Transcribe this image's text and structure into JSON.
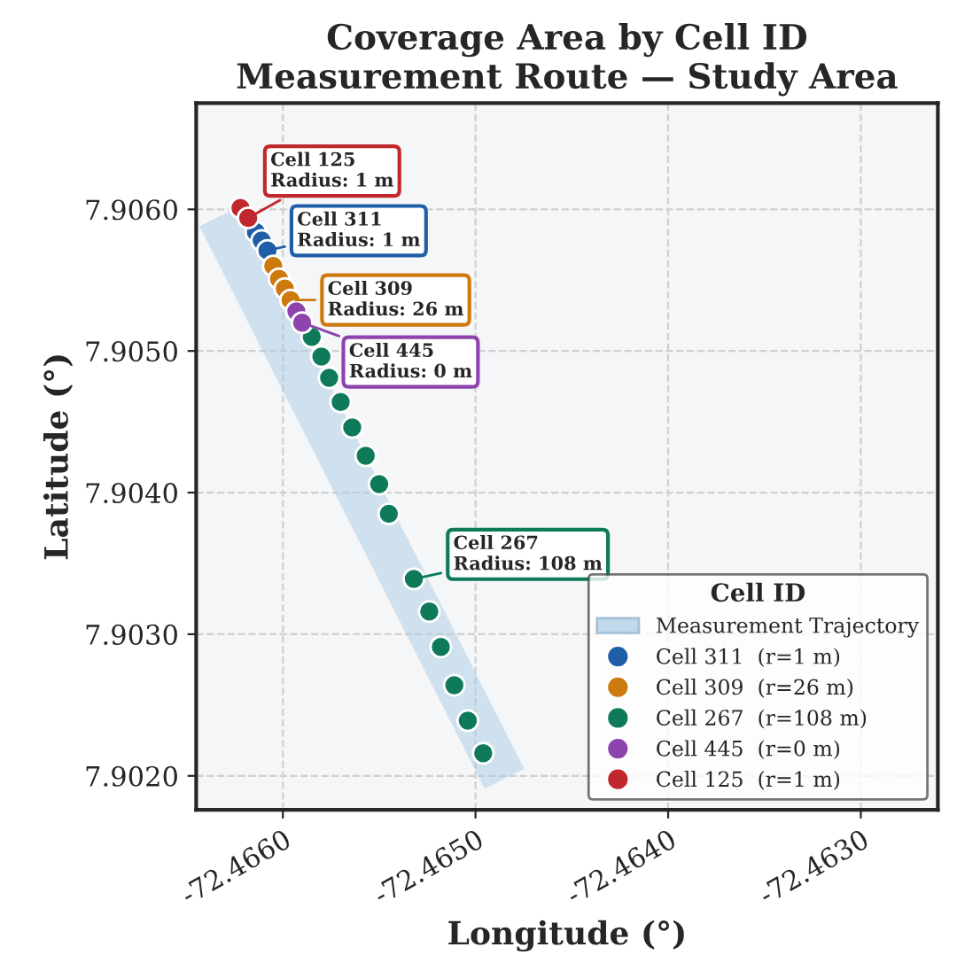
{
  "chart_data": {
    "type": "scatter",
    "title": "Coverage Area by Cell ID\nMeasurement Route — Study Area",
    "xlabel": "Longitude (°)",
    "ylabel": "Latitude (°)",
    "legend_title": "Cell ID",
    "series": [
      {
        "type": "line",
        "name": "Measurement Trajectory",
        "color": "#a9cbe3",
        "marker": "none",
        "x": [
          -72.46633,
          -72.46485
        ],
        "values": [
          7.90595,
          7.90198
        ]
      },
      {
        "name": "Cell 311  (r=1 m)",
        "color": "#1f5fa8",
        "x": [
          -72.46614,
          -72.46611,
          -72.46608
        ],
        "values": [
          7.90584,
          7.90578,
          7.90571
        ]
      },
      {
        "name": "Cell 309  (r=26 m)",
        "color": "#cc7a0e",
        "x": [
          -72.46605,
          -72.46602,
          -72.46599,
          -72.46596
        ],
        "values": [
          7.9056,
          7.90551,
          7.90544,
          7.90536
        ]
      },
      {
        "name": "Cell 267  (r=108 m)",
        "color": "#0e7a5a",
        "x": [
          -72.46585,
          -72.4658,
          -72.46576,
          -72.4657,
          -72.46564,
          -72.46557,
          -72.4655,
          -72.46545,
          -72.46532,
          -72.46524,
          -72.46518,
          -72.46511,
          -72.46504,
          -72.46496
        ],
        "values": [
          7.9051,
          7.90496,
          7.90481,
          7.90464,
          7.90446,
          7.90426,
          7.90406,
          7.90385,
          7.90339,
          7.90316,
          7.90291,
          7.90264,
          7.90239,
          7.90216
        ]
      },
      {
        "name": "Cell 445  (r=0 m)",
        "color": "#8e44ad",
        "x": [
          -72.46593,
          -72.4659
        ],
        "values": [
          7.90528,
          7.9052
        ]
      },
      {
        "name": "Cell 125  (r=1 m)",
        "color": "#c0282d",
        "x": [
          -72.46622,
          -72.46618
        ],
        "values": [
          7.90601,
          7.90594
        ]
      }
    ],
    "annotations": [
      {
        "text": "Cell 311\nRadius: 1 m",
        "x": -72.46608,
        "y": 7.90571
      },
      {
        "text": "Cell 309\nRadius: 26 m",
        "x": -72.46596,
        "y": 7.90536
      },
      {
        "text": "Cell 267\nRadius: 108 m",
        "x": -72.46532,
        "y": 7.90339
      },
      {
        "text": "Cell 445\nRadius: 0 m",
        "x": -72.4659,
        "y": 7.9052
      },
      {
        "text": "Cell 125\nRadius: 1 m",
        "x": -72.46618,
        "y": 7.90594
      }
    ],
    "xlim": [
      -72.46645,
      -72.4626
    ],
    "ylim": [
      7.90176,
      7.90675
    ],
    "xticks": [
      {
        "value": -72.466,
        "label": "-72.4660"
      },
      {
        "value": -72.465,
        "label": "-72.4650"
      },
      {
        "value": -72.464,
        "label": "-72.4640"
      },
      {
        "value": -72.463,
        "label": "-72.4630"
      }
    ],
    "yticks": [
      {
        "value": 7.902,
        "label": "7.9020"
      },
      {
        "value": 7.903,
        "label": "7.9030"
      },
      {
        "value": 7.904,
        "label": "7.9040"
      },
      {
        "value": 7.905,
        "label": "7.9050"
      },
      {
        "value": 7.906,
        "label": "7.9060"
      }
    ],
    "grid": true,
    "legend": "lower right",
    "marker": "circle"
  }
}
